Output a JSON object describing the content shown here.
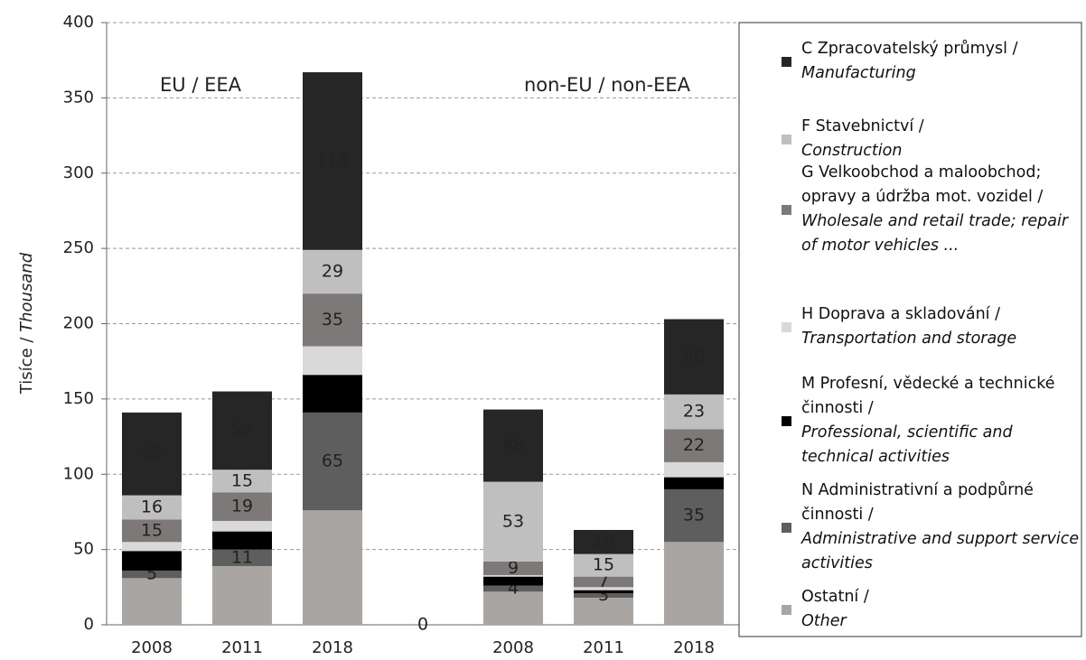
{
  "chart_data": {
    "type": "stacked_bar",
    "y_label": "Tisíce /",
    "y_label_en": "Thousand",
    "annotations": [
      "EU / EEA",
      "non-EU / non-EEA"
    ],
    "categories": [
      "2008",
      "2011",
      "2018",
      null,
      "2008",
      "2011",
      "2018"
    ],
    "ylim": [
      0,
      400
    ],
    "yticks": [
      0,
      50,
      100,
      150,
      200,
      250,
      300,
      350,
      400
    ],
    "grid": true,
    "series": [
      {
        "name": "Ostatní /",
        "name_en": "Other",
        "color": "#a9a5a3",
        "values": [
          31,
          39,
          76,
          0,
          22,
          18,
          55
        ],
        "value_labels": [
          null,
          null,
          null,
          "0",
          null,
          null,
          null
        ]
      },
      {
        "name": "N Administrativní a podpůrné činnosti /",
        "name_en": "Administrative and support service activities",
        "color": "#5e5e5e",
        "values": [
          5,
          11,
          65,
          null,
          4,
          3,
          35
        ],
        "value_labels": [
          "5",
          "11",
          "65",
          null,
          "4",
          "3",
          "35"
        ]
      },
      {
        "name": "M Profesní, vědecké a technické činnosti /",
        "name_en": "Professional, scientific and technical activities",
        "color": "#000000",
        "values": [
          13,
          12,
          25,
          null,
          6,
          2,
          8
        ],
        "value_labels": [
          null,
          null,
          null,
          null,
          null,
          null,
          null
        ]
      },
      {
        "name": "H Doprava a skladování /",
        "name_en": "Transportation and storage",
        "color": "#d9d9d9",
        "values": [
          6,
          7,
          19,
          null,
          1,
          2,
          10
        ],
        "value_labels": [
          null,
          null,
          null,
          null,
          null,
          null,
          null
        ]
      },
      {
        "name": "G Velkoobchod a maloobchod; opravy a údržba mot. vozidel /",
        "name_en": "Wholesale and retail trade; repair of motor vehicles ...",
        "color": "#7d7978",
        "values": [
          15,
          19,
          35,
          null,
          9,
          7,
          22
        ],
        "value_labels": [
          "15",
          "19",
          "35",
          null,
          "9",
          "7",
          "22"
        ]
      },
      {
        "name": "F Stavebnictví /",
        "name_en": "Construction",
        "color": "#bfbfbf",
        "values": [
          16,
          15,
          29,
          null,
          53,
          15,
          23
        ],
        "value_labels": [
          "16",
          "15",
          "29",
          null,
          "53",
          "15",
          "23"
        ]
      },
      {
        "name": "C Zpracovatelský průmysl /",
        "name_en": "Manufacturing",
        "color": "#262626",
        "values": [
          55,
          52,
          118,
          null,
          48,
          16,
          50
        ],
        "value_labels": [
          "55",
          "52",
          "118",
          null,
          "48",
          "16",
          "50"
        ]
      }
    ]
  }
}
